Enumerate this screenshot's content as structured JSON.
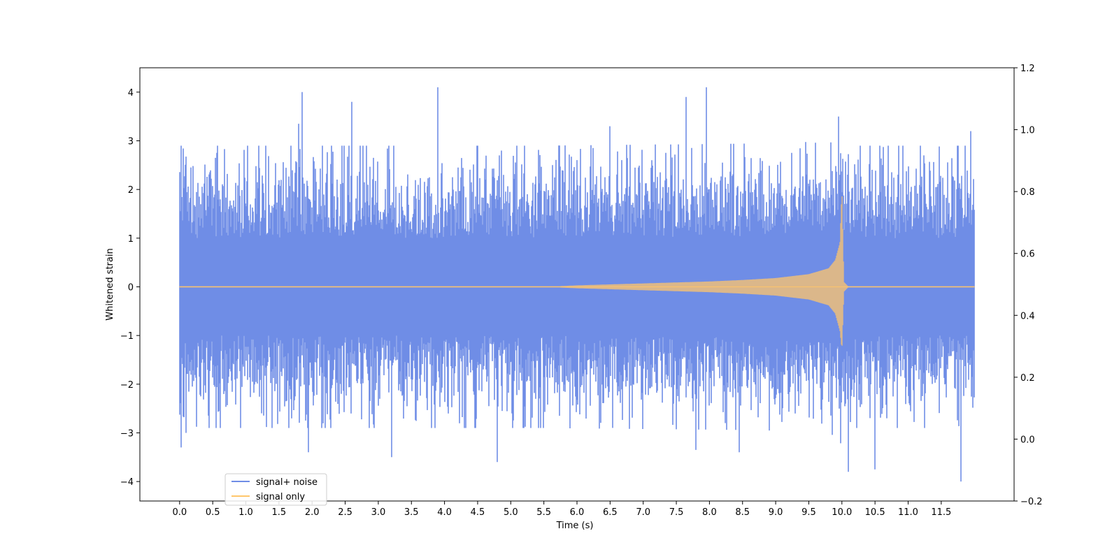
{
  "chart_data": {
    "type": "line",
    "title": "",
    "xlabel": "Time (s)",
    "ylabel": "Whitened strain",
    "y2label": "",
    "xlim": [
      -0.6,
      12.6
    ],
    "ylim": [
      -4.4,
      4.5
    ],
    "y2lim": [
      -0.2,
      1.2
    ],
    "xticks": [
      0.0,
      0.5,
      1.0,
      1.5,
      2.0,
      2.5,
      3.0,
      3.5,
      4.0,
      4.5,
      5.0,
      5.5,
      6.0,
      6.5,
      7.0,
      7.5,
      8.0,
      8.5,
      9.0,
      9.5,
      10.0,
      10.5,
      11.0,
      11.5
    ],
    "xtick_labels": [
      "0.0",
      "0.5",
      "1.0",
      "1.5",
      "2.0",
      "2.5",
      "3.0",
      "3.5",
      "4.0",
      "4.5",
      "5.0",
      "5.5",
      "6.0",
      "6.5",
      "7.0",
      "7.5",
      "8.0",
      "8.5",
      "9.0",
      "9.5",
      "10.0",
      "10.5",
      "11.0",
      "11.5"
    ],
    "yticks": [
      -4,
      -3,
      -2,
      -1,
      0,
      1,
      2,
      3,
      4
    ],
    "ytick_labels": [
      "−4",
      "−3",
      "−2",
      "−1",
      "0",
      "1",
      "2",
      "3",
      "4"
    ],
    "y2ticks": [
      -0.2,
      0.0,
      0.2,
      0.4,
      0.6,
      0.8,
      1.0,
      1.2
    ],
    "y2tick_labels": [
      "−0.2",
      "0.0",
      "0.2",
      "0.4",
      "0.6",
      "0.8",
      "1.0",
      "1.2"
    ],
    "legend_position": "lower-left",
    "grid": false,
    "series": [
      {
        "name": "signal+ noise",
        "color": "#6f8de6",
        "description": "dense white noise of roughly unit amplitude spanning 0 to 12 s with peaks near ±4, plus the chirp signal",
        "x_range": [
          0.0,
          12.0
        ],
        "noise_envelope": 2.5,
        "extreme_peaks": [
          {
            "x": 0.02,
            "y": -3.3
          },
          {
            "x": 0.1,
            "y": -3.0
          },
          {
            "x": 1.8,
            "y": 3.35
          },
          {
            "x": 1.85,
            "y": 4.0
          },
          {
            "x": 1.95,
            "y": -3.4
          },
          {
            "x": 2.6,
            "y": 3.8
          },
          {
            "x": 3.9,
            "y": 4.1
          },
          {
            "x": 3.2,
            "y": -3.5
          },
          {
            "x": 4.8,
            "y": -3.6
          },
          {
            "x": 6.5,
            "y": 3.3
          },
          {
            "x": 7.65,
            "y": 3.9
          },
          {
            "x": 7.95,
            "y": 4.1
          },
          {
            "x": 7.8,
            "y": -3.35
          },
          {
            "x": 8.45,
            "y": -3.4
          },
          {
            "x": 9.95,
            "y": 3.5
          },
          {
            "x": 10.1,
            "y": -3.8
          },
          {
            "x": 10.5,
            "y": -3.75
          },
          {
            "x": 11.8,
            "y": -4.0
          },
          {
            "x": 11.95,
            "y": 3.2
          }
        ]
      },
      {
        "name": "signal only",
        "color": "#ffc66b",
        "description": "chirp (inspiral) waveform near zero until ~5.5 s, amplitude growing toward merger at ~10.0 s, then ringdown",
        "x": [
          0.0,
          5.5,
          6.0,
          6.5,
          7.0,
          7.5,
          8.0,
          8.5,
          9.0,
          9.5,
          9.8,
          9.9,
          9.97,
          10.0,
          10.03,
          10.1,
          12.0
        ],
        "upper_envelope": [
          0.0,
          0.0,
          0.03,
          0.05,
          0.07,
          0.09,
          0.11,
          0.14,
          0.18,
          0.26,
          0.38,
          0.55,
          0.9,
          2.0,
          0.1,
          0.0,
          0.0
        ],
        "lower_envelope": [
          0.0,
          0.0,
          -0.03,
          -0.05,
          -0.07,
          -0.09,
          -0.11,
          -0.14,
          -0.18,
          -0.26,
          -0.38,
          -0.55,
          -0.9,
          -1.3,
          -0.1,
          0.0,
          0.0
        ]
      }
    ]
  }
}
